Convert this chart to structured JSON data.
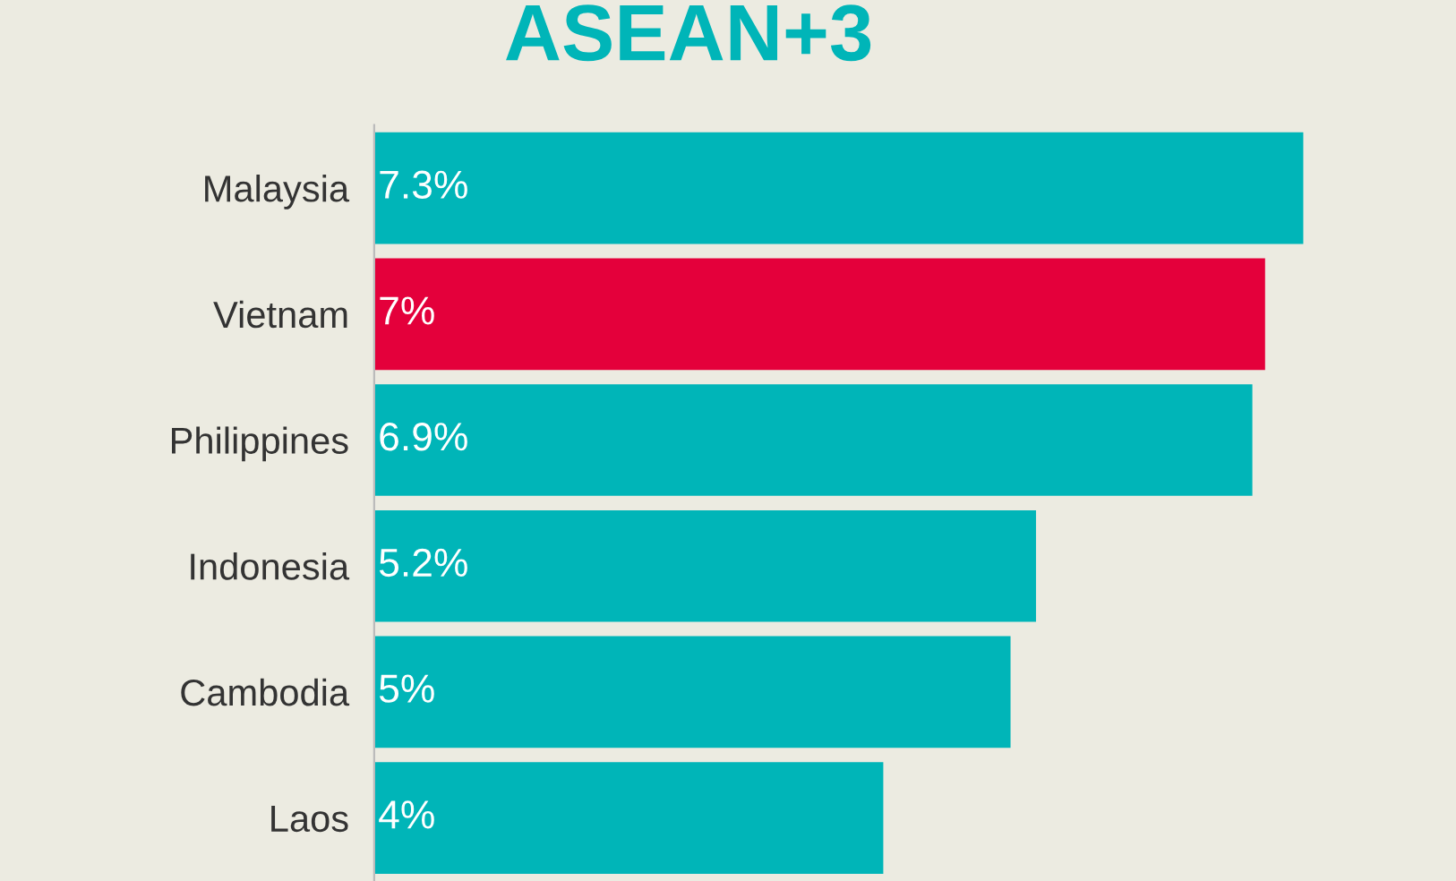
{
  "chart_data": {
    "type": "bar",
    "orientation": "horizontal",
    "title": "ASEAN+3",
    "categories": [
      "Malaysia",
      "Vietnam",
      "Philippines",
      "Indonesia",
      "Cambodia",
      "Laos"
    ],
    "values": [
      7.3,
      7,
      6.9,
      5.2,
      5,
      4
    ],
    "colors": [
      "#00b5b8",
      "#e4003b",
      "#00b5b8",
      "#00b5b8",
      "#00b5b8",
      "#00b5b8"
    ],
    "value_labels": [
      "7.3%",
      "7%",
      "6.9%",
      "5.2%",
      "5%",
      "4%"
    ],
    "xlim": [
      0,
      8.5
    ],
    "grid": false,
    "legend": false
  }
}
